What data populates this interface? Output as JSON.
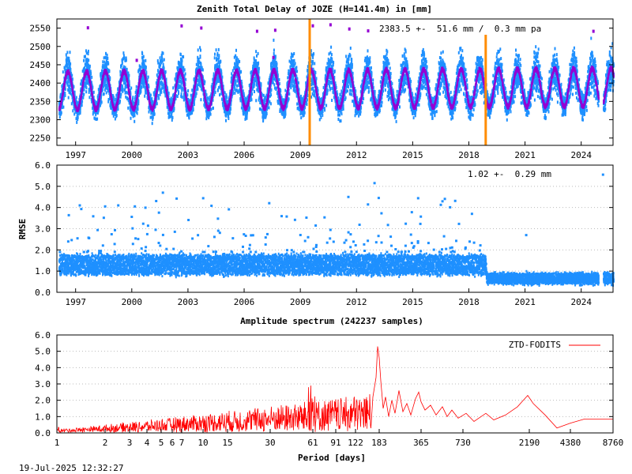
{
  "chart_data": [
    {
      "type": "scatter",
      "title": "Zenith Total Delay of JOZE (H=141.4m) in [mm]",
      "annotation": "2383.5 +-  51.6 mm /  0.3 mm pa",
      "xlim": [
        1996.0,
        2025.7
      ],
      "ylim": [
        2230,
        2575
      ],
      "x_ticks": [
        "1997",
        "2000",
        "2003",
        "2006",
        "2009",
        "2012",
        "2015",
        "2018",
        "2021",
        "2024"
      ],
      "y_ticks": [
        "2250",
        "2300",
        "2350",
        "2400",
        "2450",
        "2500",
        "2550"
      ],
      "mean": 2383.5,
      "seasonal_amplitude": 51.6,
      "trend_mm_per_year": 0.3,
      "data_gap": [
        2024.9,
        2025.15
      ],
      "breaks_x": [
        2009.5,
        2018.9
      ],
      "colors": {
        "data": "#1e90ff",
        "model": "#9400d3",
        "outlier": "#9400d3",
        "break": "#ff8c00"
      }
    },
    {
      "type": "scatter",
      "title": "",
      "ylabel": "RMSE",
      "annotation": "1.02 +-  0.29 mm",
      "xlim": [
        1996.0,
        2025.7
      ],
      "ylim": [
        0,
        6
      ],
      "x_ticks": [
        "1997",
        "2000",
        "2003",
        "2006",
        "2009",
        "2012",
        "2015",
        "2018",
        "2021",
        "2024"
      ],
      "y_ticks": [
        "0.0",
        "1.0",
        "2.0",
        "3.0",
        "4.0",
        "5.0",
        "6.0"
      ],
      "level_before_2018_9": 1.3,
      "level_after_2018_9": 0.65,
      "colors": {
        "data": "#1e90ff"
      }
    },
    {
      "type": "line",
      "title": "Amplitude spectrum (242237 samples)",
      "xlabel": "Period [days]",
      "xscale": "reciprocal",
      "xlim": [
        0,
        8760
      ],
      "ylim": [
        0,
        6
      ],
      "x_ticks": [
        "1",
        "2",
        "3",
        "4",
        "5",
        "6",
        "7",
        "10",
        "15",
        "30",
        "61",
        "91",
        "122",
        "183",
        "365",
        "730",
        "2190",
        "4380",
        "8760"
      ],
      "y_ticks": [
        "0.0",
        "1.0",
        "2.0",
        "3.0",
        "4.0",
        "5.0",
        "6.0"
      ],
      "legend": "top-right",
      "series": [
        {
          "name": "ZTD-FODITS",
          "peaks": [
            {
              "period": 183,
              "amplitude": 5.3
            },
            {
              "period": 365,
              "amplitude": 2.5
            },
            {
              "period": 2190,
              "amplitude": 2.3
            },
            {
              "period": 61,
              "amplitude": 3.5
            }
          ]
        }
      ],
      "colors": {
        "line": "#ff0000"
      }
    }
  ],
  "footer": {
    "timestamp": "19-Jul-2025 12:32:27"
  }
}
